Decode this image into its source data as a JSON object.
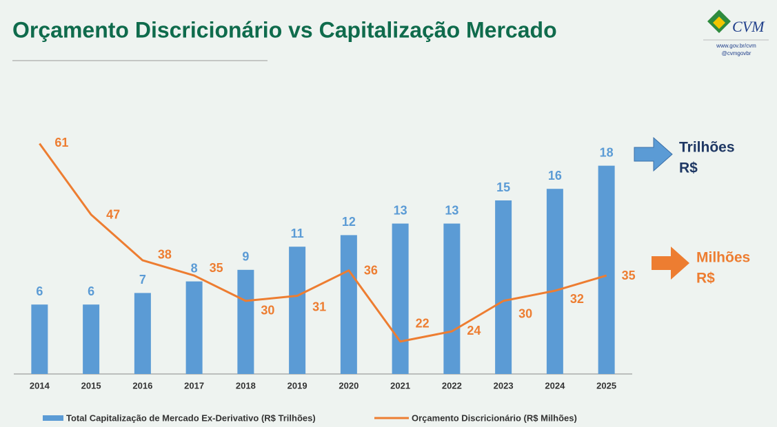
{
  "header": {
    "logo_text": "CVM",
    "website": "www.gov.br/cvm",
    "handle": "@cvmgovbr"
  },
  "chart_data": {
    "type": "bar_line",
    "title": "Orçamento Discricionário vs Capitalização Mercado",
    "categories": [
      "2014",
      "2015",
      "2016",
      "2017",
      "2018",
      "2019",
      "2020",
      "2021",
      "2022",
      "2023",
      "2024",
      "2025"
    ],
    "series": [
      {
        "name": "Total Capitalização de Mercado Ex-Derivativo (R$ Trilhões)",
        "type": "bar",
        "color": "#5b9bd5",
        "axis": "y",
        "values": [
          6,
          6,
          7,
          8,
          9,
          11,
          12,
          13,
          13,
          15,
          16,
          18
        ]
      },
      {
        "name": "Orçamento Discricionário (R$ Milhões)",
        "type": "line",
        "color": "#ed7d31",
        "axis": "y2",
        "values": [
          61,
          47,
          38,
          35,
          30,
          31,
          36,
          22,
          24,
          30,
          32,
          35
        ]
      }
    ],
    "ylim": [
      0,
      20
    ],
    "y2lim": [
      15.6,
      61.2
    ],
    "annotations": [
      {
        "lines": [
          "Trilhões",
          "R$"
        ],
        "color": "#1f3864",
        "arrow_color": "#5b9bd5"
      },
      {
        "lines": [
          "Milhões",
          "R$"
        ],
        "color": "#ed7d31",
        "arrow_color": "#ed7d31"
      }
    ]
  }
}
